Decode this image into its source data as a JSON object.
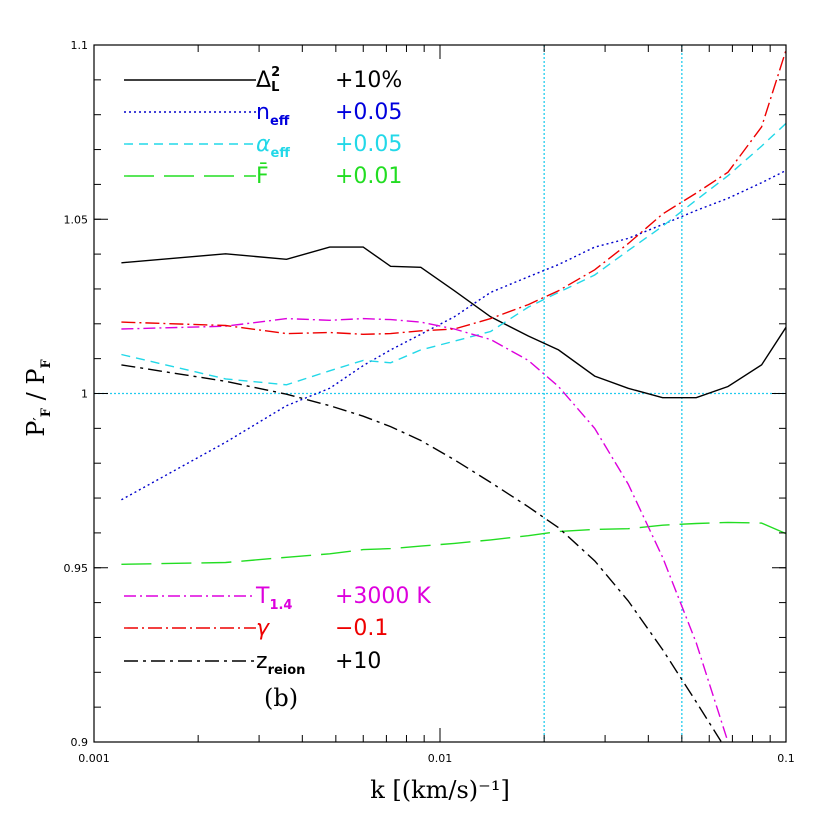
{
  "chart_data": {
    "type": "line",
    "xscale": "log",
    "xlim": [
      0.001,
      0.1
    ],
    "ylim": [
      0.9,
      1.1
    ],
    "xlabel": "k [(km/s)⁻¹]",
    "ylabel": "P′F / PF",
    "xticks": [
      {
        "v": 0.001,
        "label": "0.001"
      },
      {
        "v": 0.01,
        "label": "0.01"
      },
      {
        "v": 0.1,
        "label": "0.1"
      }
    ],
    "yticks": [
      {
        "v": 0.9,
        "label": "0.9"
      },
      {
        "v": 0.95,
        "label": "0.95"
      },
      {
        "v": 1.0,
        "label": "1"
      },
      {
        "v": 1.05,
        "label": "1.05"
      },
      {
        "v": 1.1,
        "label": "1.1"
      }
    ],
    "reference_lines": {
      "color": "#22ccee",
      "vertical_k": [
        0.02,
        0.05
      ],
      "horizontal_y": [
        1.0
      ]
    },
    "panel_label": "(b)",
    "series": [
      {
        "name": "ΔL² +10%",
        "color": "#000000",
        "dash": "",
        "x": [
          0.0012,
          0.0024,
          0.0036,
          0.0048,
          0.006,
          0.0072,
          0.0088,
          0.011,
          0.014,
          0.018,
          0.022,
          0.028,
          0.035,
          0.044,
          0.055,
          0.068,
          0.085,
          0.1
        ],
        "y": [
          1.0375,
          1.0401,
          1.0385,
          1.042,
          1.042,
          1.0365,
          1.0362,
          1.0295,
          1.022,
          1.0165,
          1.0125,
          1.005,
          1.0015,
          0.9988,
          0.9988,
          1.002,
          1.0082,
          1.019
        ]
      },
      {
        "name": "neff +0.05",
        "color": "#0000cc",
        "dash": "2,3",
        "x": [
          0.0012,
          0.0024,
          0.0036,
          0.0048,
          0.006,
          0.0072,
          0.0088,
          0.011,
          0.014,
          0.018,
          0.022,
          0.028,
          0.035,
          0.044,
          0.055,
          0.068,
          0.085,
          0.1
        ],
        "y": [
          0.9695,
          0.986,
          0.9965,
          1.0015,
          1.008,
          1.0125,
          1.017,
          1.022,
          1.029,
          1.0335,
          1.037,
          1.042,
          1.0445,
          1.0485,
          1.0525,
          1.056,
          1.0605,
          1.064
        ]
      },
      {
        "name": "αeff +0.05",
        "color": "#22d8e8",
        "dash": "9,6",
        "x": [
          0.0012,
          0.0024,
          0.0036,
          0.0048,
          0.006,
          0.0072,
          0.0088,
          0.011,
          0.014,
          0.018,
          0.022,
          0.028,
          0.035,
          0.044,
          0.055,
          0.068,
          0.085,
          0.1
        ],
        "y": [
          1.0112,
          1.0042,
          1.0025,
          1.0065,
          1.0095,
          1.0088,
          1.0125,
          1.015,
          1.0178,
          1.0248,
          1.029,
          1.034,
          1.041,
          1.048,
          1.0555,
          1.0625,
          1.071,
          1.0775
        ]
      },
      {
        "name": "F̄ +0.01",
        "color": "#22dd22",
        "dash": "30,10",
        "x": [
          0.0012,
          0.0024,
          0.0036,
          0.0048,
          0.006,
          0.0072,
          0.0088,
          0.011,
          0.014,
          0.018,
          0.022,
          0.028,
          0.035,
          0.044,
          0.055,
          0.068,
          0.085,
          0.1
        ],
        "y": [
          0.951,
          0.9515,
          0.953,
          0.954,
          0.9552,
          0.9555,
          0.9562,
          0.957,
          0.958,
          0.9592,
          0.9604,
          0.961,
          0.9612,
          0.9622,
          0.9627,
          0.963,
          0.9628,
          0.9598
        ]
      },
      {
        "name": "T1.4 +3000 K",
        "color": "#dd00dd",
        "dash": "12,4,2,4",
        "x": [
          0.0012,
          0.0024,
          0.0036,
          0.0048,
          0.006,
          0.0072,
          0.0088,
          0.011,
          0.014,
          0.018,
          0.022,
          0.028,
          0.035,
          0.044,
          0.055,
          0.068
        ],
        "y": [
          1.0185,
          1.0193,
          1.0215,
          1.021,
          1.0215,
          1.0212,
          1.0205,
          1.0185,
          1.0155,
          1.0095,
          1.002,
          0.99,
          0.974,
          0.953,
          0.9285,
          0.9
        ]
      },
      {
        "name": "γ −0.1",
        "color": "#ee0000",
        "dash": "14,4,2,4",
        "x": [
          0.0012,
          0.0024,
          0.0036,
          0.0048,
          0.006,
          0.0072,
          0.0088,
          0.011,
          0.014,
          0.018,
          0.022,
          0.028,
          0.035,
          0.044,
          0.055,
          0.068,
          0.085,
          0.1
        ],
        "y": [
          1.0205,
          1.0195,
          1.0172,
          1.0175,
          1.017,
          1.0172,
          1.018,
          1.0185,
          1.0215,
          1.0255,
          1.0295,
          1.0355,
          1.043,
          1.0515,
          1.0575,
          1.0635,
          1.0765,
          1.0985
        ]
      },
      {
        "name": "zreion +10",
        "color": "#000000",
        "dash": "14,5,3,5",
        "x": [
          0.0012,
          0.0024,
          0.0036,
          0.0048,
          0.006,
          0.0072,
          0.0088,
          0.011,
          0.014,
          0.018,
          0.022,
          0.028,
          0.035,
          0.044,
          0.055,
          0.068
        ],
        "y": [
          1.0082,
          1.0035,
          0.9998,
          0.9965,
          0.9935,
          0.9905,
          0.9865,
          0.981,
          0.9745,
          0.9675,
          0.9615,
          0.952,
          0.9405,
          0.9265,
          0.9115,
          0.897
        ]
      }
    ],
    "legend": [
      {
        "series": 0,
        "main": "Δ",
        "sub": "L",
        "sup": "2",
        "value": "+10%",
        "text_color": "#000000"
      },
      {
        "series": 1,
        "main": "n",
        "sub": "eff",
        "sup": "",
        "value": "+0.05",
        "text_color": "#0000dd"
      },
      {
        "series": 2,
        "main": "α",
        "sub": "eff",
        "sup": "",
        "value": "+0.05",
        "text_color": "#22d8e8"
      },
      {
        "series": 3,
        "main": "F̄",
        "sub": "",
        "sup": "",
        "value": "+0.01",
        "text_color": "#22dd22"
      },
      {
        "series": 4,
        "main": "T",
        "sub": "1.4",
        "sup": "",
        "value": "+3000 K",
        "text_color": "#dd00dd"
      },
      {
        "series": 5,
        "main": "γ",
        "sub": "",
        "sup": "",
        "value": "−0.1",
        "text_color": "#ee0000"
      },
      {
        "series": 6,
        "main": "z",
        "sub": "reion",
        "sup": "",
        "value": "+10",
        "text_color": "#000000"
      }
    ]
  }
}
